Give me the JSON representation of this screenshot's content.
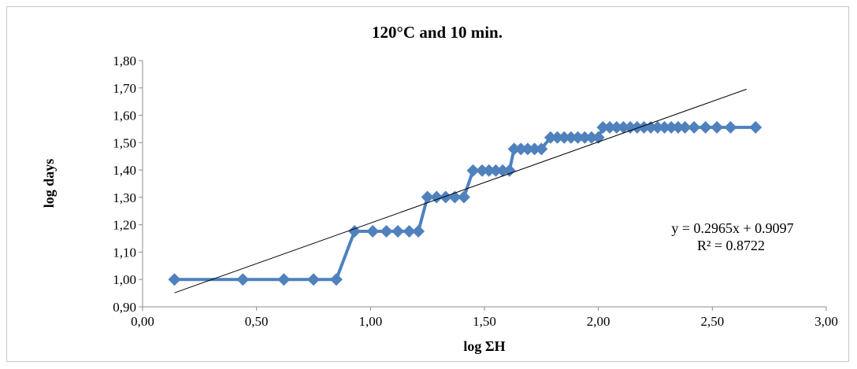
{
  "chart_data": {
    "type": "scatter",
    "title": "120°C and 10 min.",
    "xlabel": "log ΣH",
    "ylabel": "log days",
    "xlim": [
      0,
      3
    ],
    "ylim": [
      0.9,
      1.8
    ],
    "x_ticks": [
      "0,00",
      "0,50",
      "1,00",
      "1,50",
      "2,00",
      "2,50",
      "3,00"
    ],
    "y_ticks": [
      "0,90",
      "1,00",
      "1,10",
      "1,20",
      "1,30",
      "1,40",
      "1,50",
      "1,60",
      "1,70",
      "1,80"
    ],
    "grid": false,
    "legend": "none",
    "series_color": "#4f81bd",
    "trendline_color": "#000000",
    "series": [
      {
        "points": [
          [
            0.14,
            1.0
          ],
          [
            0.44,
            1.0
          ],
          [
            0.62,
            1.0
          ],
          [
            0.75,
            1.0
          ],
          [
            0.85,
            1.0
          ],
          [
            0.93,
            1.176
          ],
          [
            1.01,
            1.176
          ],
          [
            1.07,
            1.176
          ],
          [
            1.12,
            1.176
          ],
          [
            1.17,
            1.176
          ],
          [
            1.21,
            1.176
          ],
          [
            1.25,
            1.301
          ],
          [
            1.29,
            1.301
          ],
          [
            1.33,
            1.301
          ],
          [
            1.37,
            1.301
          ],
          [
            1.41,
            1.301
          ],
          [
            1.45,
            1.398
          ],
          [
            1.49,
            1.398
          ],
          [
            1.52,
            1.398
          ],
          [
            1.55,
            1.398
          ],
          [
            1.58,
            1.398
          ],
          [
            1.61,
            1.398
          ],
          [
            1.63,
            1.477
          ],
          [
            1.66,
            1.477
          ],
          [
            1.69,
            1.477
          ],
          [
            1.72,
            1.477
          ],
          [
            1.75,
            1.477
          ],
          [
            1.79,
            1.519
          ],
          [
            1.82,
            1.519
          ],
          [
            1.85,
            1.519
          ],
          [
            1.88,
            1.519
          ],
          [
            1.91,
            1.519
          ],
          [
            1.94,
            1.519
          ],
          [
            1.97,
            1.519
          ],
          [
            2.0,
            1.519
          ],
          [
            2.02,
            1.556
          ],
          [
            2.05,
            1.556
          ],
          [
            2.08,
            1.556
          ],
          [
            2.11,
            1.556
          ],
          [
            2.14,
            1.556
          ],
          [
            2.17,
            1.556
          ],
          [
            2.2,
            1.556
          ],
          [
            2.23,
            1.556
          ],
          [
            2.26,
            1.556
          ],
          [
            2.29,
            1.556
          ],
          [
            2.32,
            1.556
          ],
          [
            2.35,
            1.556
          ],
          [
            2.38,
            1.556
          ],
          [
            2.42,
            1.556
          ],
          [
            2.47,
            1.556
          ],
          [
            2.52,
            1.556
          ],
          [
            2.58,
            1.556
          ],
          [
            2.69,
            1.556
          ]
        ]
      }
    ],
    "trendline": {
      "slope": 0.2965,
      "intercept": 0.9097,
      "x_range": [
        0.14,
        2.65
      ],
      "equation": "y = 0.2965x + 0.9097",
      "r_squared": "R² = 0.8722"
    }
  }
}
